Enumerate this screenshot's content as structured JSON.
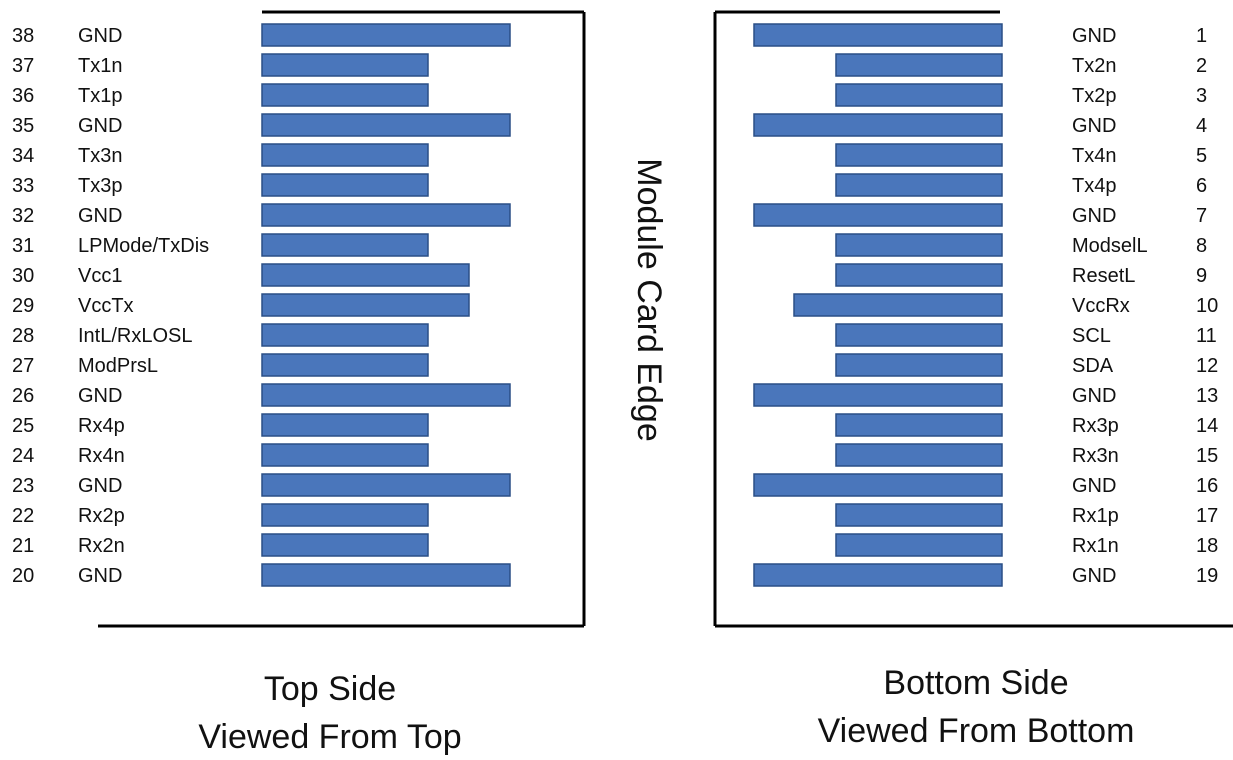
{
  "colors": {
    "pad_fill": "#4a76bb",
    "pad_stroke": "#2a4f86",
    "text": "#111111",
    "frame": "#000000"
  },
  "edge_label": "Module Card Edge",
  "top_side": {
    "caption_line1": "Top Side",
    "caption_line2": "Viewed From Top",
    "pins": [
      {
        "num": "38",
        "name": "GND",
        "pad": "long"
      },
      {
        "num": "37",
        "name": "Tx1n",
        "pad": "short"
      },
      {
        "num": "36",
        "name": "Tx1p",
        "pad": "short"
      },
      {
        "num": "35",
        "name": "GND",
        "pad": "long"
      },
      {
        "num": "34",
        "name": "Tx3n",
        "pad": "short"
      },
      {
        "num": "33",
        "name": "Tx3p",
        "pad": "short"
      },
      {
        "num": "32",
        "name": "GND",
        "pad": "long"
      },
      {
        "num": "31",
        "name": "LPMode/TxDis",
        "pad": "short"
      },
      {
        "num": "30",
        "name": "Vcc1",
        "pad": "medium"
      },
      {
        "num": "29",
        "name": "VccTx",
        "pad": "medium"
      },
      {
        "num": "28",
        "name": "IntL/RxLOSL",
        "pad": "short"
      },
      {
        "num": "27",
        "name": "ModPrsL",
        "pad": "short"
      },
      {
        "num": "26",
        "name": "GND",
        "pad": "long"
      },
      {
        "num": "25",
        "name": "Rx4p",
        "pad": "short"
      },
      {
        "num": "24",
        "name": "Rx4n",
        "pad": "short"
      },
      {
        "num": "23",
        "name": "GND",
        "pad": "long"
      },
      {
        "num": "22",
        "name": "Rx2p",
        "pad": "short"
      },
      {
        "num": "21",
        "name": "Rx2n",
        "pad": "short"
      },
      {
        "num": "20",
        "name": "GND",
        "pad": "long"
      }
    ]
  },
  "bottom_side": {
    "caption_line1": "Bottom Side",
    "caption_line2": "Viewed From Bottom",
    "pins": [
      {
        "num": "1",
        "name": "GND",
        "pad": "long"
      },
      {
        "num": "2",
        "name": "Tx2n",
        "pad": "short"
      },
      {
        "num": "3",
        "name": "Tx2p",
        "pad": "short"
      },
      {
        "num": "4",
        "name": "GND",
        "pad": "long"
      },
      {
        "num": "5",
        "name": "Tx4n",
        "pad": "short"
      },
      {
        "num": "6",
        "name": "Tx4p",
        "pad": "short"
      },
      {
        "num": "7",
        "name": "GND",
        "pad": "long"
      },
      {
        "num": "8",
        "name": "ModselL",
        "pad": "short"
      },
      {
        "num": "9",
        "name": "ResetL",
        "pad": "short"
      },
      {
        "num": "10",
        "name": "VccRx",
        "pad": "medium"
      },
      {
        "num": "11",
        "name": "SCL",
        "pad": "short"
      },
      {
        "num": "12",
        "name": "SDA",
        "pad": "short"
      },
      {
        "num": "13",
        "name": "GND",
        "pad": "long"
      },
      {
        "num": "14",
        "name": "Rx3p",
        "pad": "short"
      },
      {
        "num": "15",
        "name": "Rx3n",
        "pad": "short"
      },
      {
        "num": "16",
        "name": "GND",
        "pad": "long"
      },
      {
        "num": "17",
        "name": "Rx1p",
        "pad": "short"
      },
      {
        "num": "18",
        "name": "Rx1n",
        "pad": "short"
      },
      {
        "num": "19",
        "name": "GND",
        "pad": "long"
      }
    ]
  }
}
